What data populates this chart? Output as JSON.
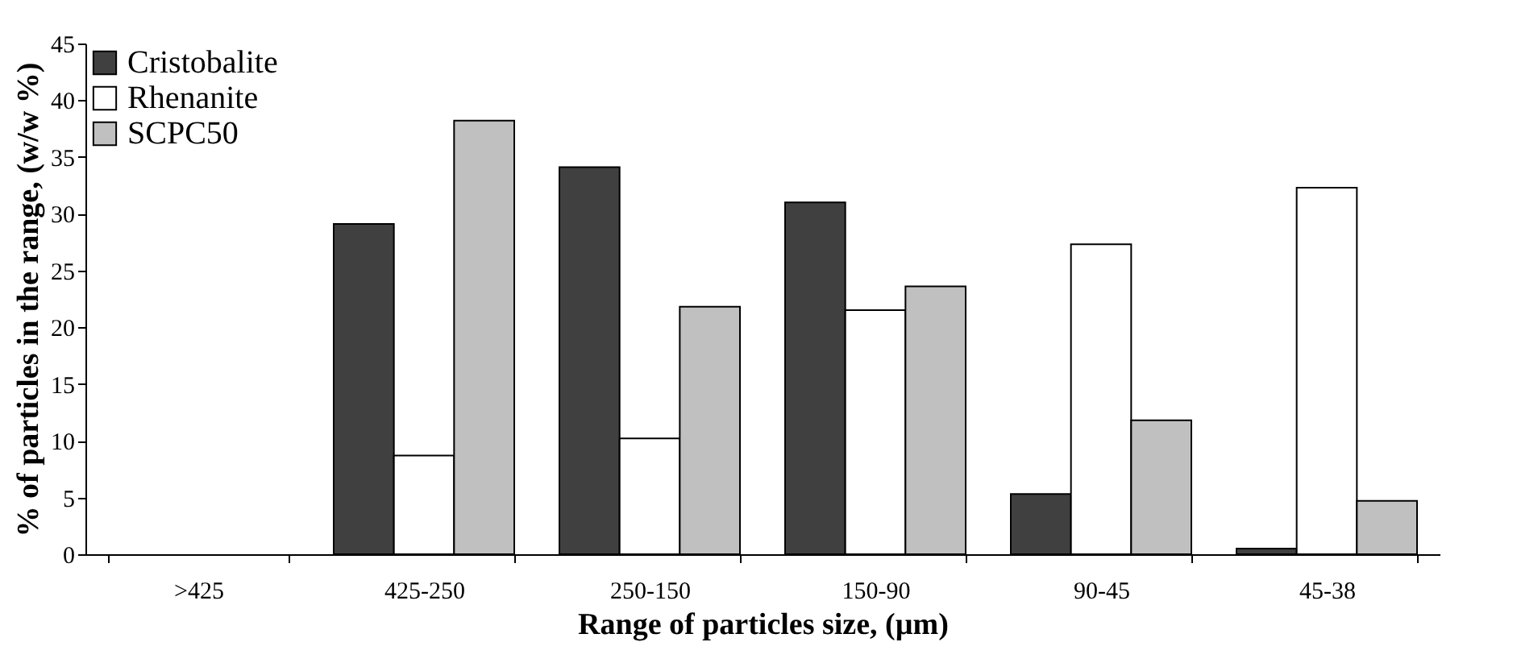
{
  "chart_data": {
    "type": "bar",
    "xlabel": "Range of particles size, (µm)",
    "ylabel": "% of particles in the range, (w/w %)",
    "categories": [
      ">425",
      "425-250",
      "250-150",
      "150-90",
      "90-45",
      "45-38"
    ],
    "series": [
      {
        "name": "Cristobalite",
        "color": "#404040",
        "values": [
          null,
          29.1,
          34.1,
          31.0,
          5.3,
          0.5
        ]
      },
      {
        "name": "Rhenanite",
        "color": "#ffffff",
        "values": [
          null,
          8.7,
          10.2,
          21.5,
          27.3,
          32.3
        ]
      },
      {
        "name": "SCPC50",
        "color": "#c0c0c0",
        "values": [
          null,
          38.2,
          21.8,
          23.6,
          11.8,
          4.7
        ]
      }
    ],
    "ylim": [
      0,
      45
    ],
    "yticks": [
      0,
      5,
      10,
      15,
      20,
      25,
      30,
      35,
      40,
      45
    ],
    "grid": false,
    "legend": "top left"
  }
}
